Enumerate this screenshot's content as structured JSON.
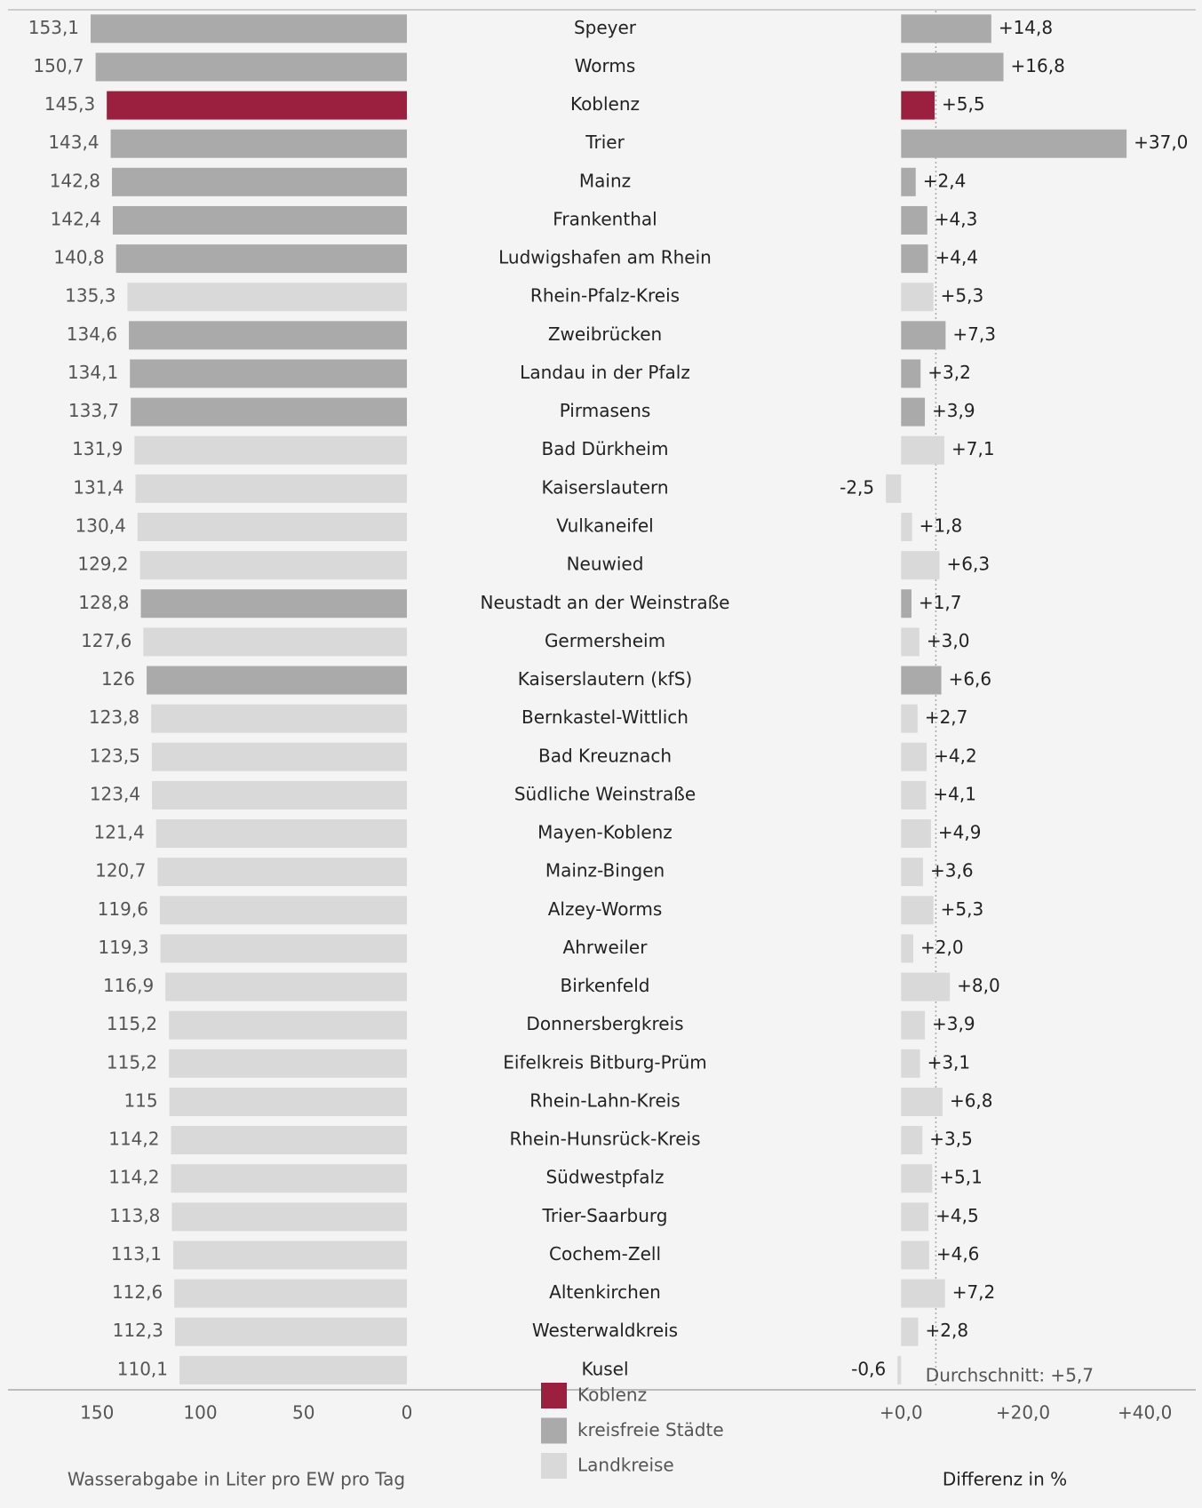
{
  "chart_data": [
    {
      "type": "bar",
      "orientation": "horizontal",
      "x_reversed": true,
      "xlabel": "Wasserabgabe in Liter pro EW pro Tag",
      "categories": [
        "Speyer",
        "Worms",
        "Koblenz",
        "Trier",
        "Mainz",
        "Frankenthal",
        "Ludwigshafen am Rhein",
        "Rhein-Pfalz-Kreis",
        "Zweibrücken",
        "Landau in der Pfalz",
        "Pirmasens",
        "Bad Dürkheim",
        "Kaiserslautern",
        "Vulkaneifel",
        "Neuwied",
        "Neustadt an der Weinstraße",
        "Germersheim",
        "Kaiserslautern (kfS)",
        "Bernkastel-Wittlich",
        "Bad Kreuznach",
        "Südliche Weinstraße",
        "Mayen-Koblenz",
        "Mainz-Bingen",
        "Alzey-Worms",
        "Ahrweiler",
        "Birkenfeld",
        "Donnersbergkreis",
        "Eifelkreis Bitburg-Prüm",
        "Rhein-Lahn-Kreis",
        "Rhein-Hunsrück-Kreis",
        "Südwestpfalz",
        "Trier-Saarburg",
        "Cochem-Zell",
        "Altenkirchen",
        "Westerwaldkreis",
        "Kusel"
      ],
      "values": [
        153.1,
        150.7,
        145.3,
        143.4,
        142.8,
        142.4,
        140.8,
        135.3,
        134.6,
        134.1,
        133.7,
        131.9,
        131.4,
        130.4,
        129.2,
        128.8,
        127.6,
        126,
        123.8,
        123.5,
        123.4,
        121.4,
        120.7,
        119.6,
        119.3,
        116.9,
        115.2,
        115.2,
        115,
        114.2,
        114.2,
        113.8,
        113.1,
        112.6,
        112.3,
        110.1
      ],
      "value_labels": [
        "153,1",
        "150,7",
        "145,3",
        "143,4",
        "142,8",
        "142,4",
        "140,8",
        "135,3",
        "134,6",
        "134,1",
        "133,7",
        "131,9",
        "131,4",
        "130,4",
        "129,2",
        "128,8",
        "127,6",
        "126",
        "123,8",
        "123,5",
        "123,4",
        "121,4",
        "120,7",
        "119,6",
        "119,3",
        "116,9",
        "115,2",
        "115,2",
        "115",
        "114,2",
        "114,2",
        "113,8",
        "113,1",
        "112,6",
        "112,3",
        "110,1"
      ],
      "colors": [
        "#aaaaaa",
        "#aaaaaa",
        "#9b2040",
        "#aaaaaa",
        "#aaaaaa",
        "#aaaaaa",
        "#aaaaaa",
        "#d9d9d9",
        "#aaaaaa",
        "#aaaaaa",
        "#aaaaaa",
        "#d9d9d9",
        "#d9d9d9",
        "#d9d9d9",
        "#d9d9d9",
        "#aaaaaa",
        "#d9d9d9",
        "#aaaaaa",
        "#d9d9d9",
        "#d9d9d9",
        "#d9d9d9",
        "#d9d9d9",
        "#d9d9d9",
        "#d9d9d9",
        "#d9d9d9",
        "#d9d9d9",
        "#d9d9d9",
        "#d9d9d9",
        "#d9d9d9",
        "#d9d9d9",
        "#d9d9d9",
        "#d9d9d9",
        "#d9d9d9",
        "#d9d9d9",
        "#d9d9d9",
        "#d9d9d9"
      ],
      "xlim": [
        0,
        160
      ],
      "xticks": [
        150,
        100,
        50,
        0
      ],
      "legend": [
        {
          "name": "Koblenz",
          "color": "#9b2040"
        },
        {
          "name": "kreisfreie Städte",
          "color": "#aaaaaa"
        },
        {
          "name": "Landkreise",
          "color": "#d9d9d9"
        }
      ]
    },
    {
      "type": "bar",
      "orientation": "horizontal",
      "xlabel": "Differenz in %",
      "values": [
        14.8,
        16.8,
        5.5,
        37.0,
        2.4,
        4.3,
        4.4,
        5.3,
        7.3,
        3.2,
        3.9,
        7.1,
        -2.5,
        1.8,
        6.3,
        1.7,
        3.0,
        6.6,
        2.7,
        4.2,
        4.1,
        4.9,
        3.6,
        5.3,
        2.0,
        8.0,
        3.9,
        3.1,
        6.8,
        3.5,
        5.1,
        4.5,
        4.6,
        7.2,
        2.8,
        -0.6
      ],
      "value_labels": [
        "+14,8",
        "+16,8",
        "+5,5",
        "+37,0",
        "+2,4",
        "+4,3",
        "+4,4",
        "+5,3",
        "+7,3",
        "+3,2",
        "+3,9",
        "+7,1",
        "-2,5",
        "+1,8",
        "+6,3",
        "+1,7",
        "+3,0",
        "+6,6",
        "+2,7",
        "+4,2",
        "+4,1",
        "+4,9",
        "+3,6",
        "+5,3",
        "+2,0",
        "+8,0",
        "+3,9",
        "+3,1",
        "+6,8",
        "+3,5",
        "+5,1",
        "+4,5",
        "+4,6",
        "+7,2",
        "+2,8",
        "-0,6"
      ],
      "colors": [
        "#aaaaaa",
        "#aaaaaa",
        "#9b2040",
        "#aaaaaa",
        "#aaaaaa",
        "#aaaaaa",
        "#aaaaaa",
        "#d9d9d9",
        "#aaaaaa",
        "#aaaaaa",
        "#aaaaaa",
        "#d9d9d9",
        "#d9d9d9",
        "#d9d9d9",
        "#d9d9d9",
        "#aaaaaa",
        "#d9d9d9",
        "#aaaaaa",
        "#d9d9d9",
        "#d9d9d9",
        "#d9d9d9",
        "#d9d9d9",
        "#d9d9d9",
        "#d9d9d9",
        "#d9d9d9",
        "#d9d9d9",
        "#d9d9d9",
        "#d9d9d9",
        "#d9d9d9",
        "#d9d9d9",
        "#d9d9d9",
        "#d9d9d9",
        "#d9d9d9",
        "#d9d9d9",
        "#d9d9d9",
        "#d9d9d9"
      ],
      "xlim": [
        -5,
        45
      ],
      "xticks": [
        {
          "value": 0,
          "label": "+0,0"
        },
        {
          "value": 20,
          "label": "+20,0"
        },
        {
          "value": 40,
          "label": "+40,0"
        }
      ],
      "reference_line": {
        "value": 5.7,
        "label": "Durchschnitt: +5,7"
      }
    }
  ]
}
